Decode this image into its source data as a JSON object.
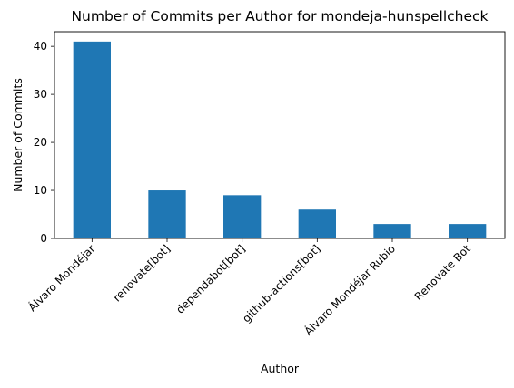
{
  "chart_data": {
    "type": "bar",
    "title": "Number of Commits per Author for mondeja-hunspellcheck",
    "xlabel": "Author",
    "ylabel": "Number of Commits",
    "categories": [
      "Álvaro Mondéjar",
      "renovate[bot]",
      "dependabot[bot]",
      "github-actions[bot]",
      "Álvaro Mondéjar Rubio",
      "Renovate Bot"
    ],
    "values": [
      41,
      10,
      9,
      6,
      3,
      3
    ],
    "ylim": [
      0,
      43.05
    ],
    "yticks": [
      0,
      10,
      20,
      30,
      40
    ],
    "grid": false,
    "legend": "none",
    "bar_color": "#1f77b4"
  }
}
